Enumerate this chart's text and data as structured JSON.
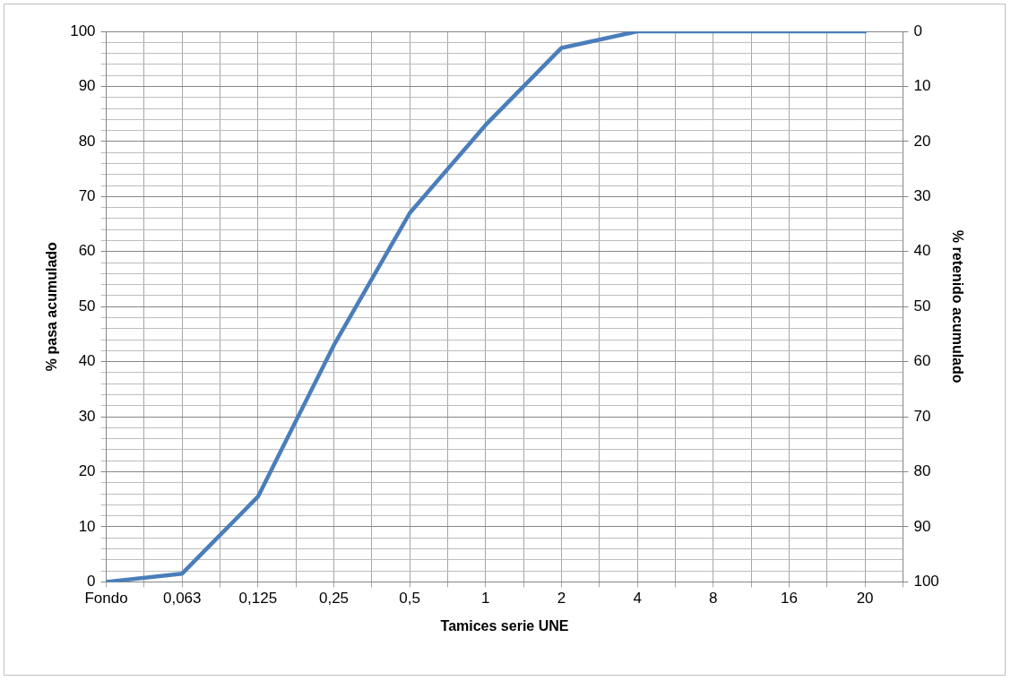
{
  "chart_data": {
    "type": "line",
    "xlabel": "Tamices serie UNE",
    "ylabel": "% pasa acumulado",
    "y2label": "% retenido acumulado",
    "categories": [
      "Fondo",
      "0,063",
      "0,125",
      "0,25",
      "0,5",
      "1",
      "2",
      "4",
      "8",
      "16",
      "20"
    ],
    "series": [
      {
        "color": "#4a7ebb",
        "values": [
          0,
          1.5,
          15.5,
          43,
          67,
          83,
          97,
          100,
          100,
          100,
          100
        ]
      }
    ],
    "ylim": [
      0,
      100
    ],
    "yticks": [
      0,
      {
        "value": 2,
        "label": null
      },
      {
        "value": 4,
        "label": null
      },
      {
        "value": 6,
        "label": null
      },
      {
        "value": 8,
        "label": null
      },
      10,
      {
        "value": 12,
        "label": null
      },
      {
        "value": 14,
        "label": null
      },
      {
        "value": 16,
        "label": null
      },
      {
        "value": 18,
        "label": null
      },
      20,
      {
        "value": 22,
        "label": null
      },
      {
        "value": 24,
        "label": null
      },
      {
        "value": 26,
        "label": null
      },
      {
        "value": 28,
        "label": null
      },
      30,
      {
        "value": 32,
        "label": null
      },
      {
        "value": 34,
        "label": null
      },
      {
        "value": 36,
        "label": null
      },
      {
        "value": 38,
        "label": null
      },
      40,
      {
        "value": 42,
        "label": null
      },
      {
        "value": 44,
        "label": null
      },
      {
        "value": 46,
        "label": null
      },
      {
        "value": 48,
        "label": null
      },
      50,
      {
        "value": 52,
        "label": null
      },
      {
        "value": 54,
        "label": null
      },
      {
        "value": 56,
        "label": null
      },
      {
        "value": 58,
        "label": null
      },
      60,
      {
        "value": 62,
        "label": null
      },
      {
        "value": 64,
        "label": null
      },
      {
        "value": 66,
        "label": null
      },
      {
        "value": 68,
        "label": null
      },
      70,
      {
        "value": 72,
        "label": null
      },
      {
        "value": 74,
        "label": null
      },
      {
        "value": 76,
        "label": null
      },
      {
        "value": 78,
        "label": null
      },
      80,
      {
        "value": 82,
        "label": null
      },
      {
        "value": 84,
        "label": null
      },
      {
        "value": 86,
        "label": null
      },
      {
        "value": 88,
        "label": null
      },
      90,
      {
        "value": 92,
        "label": null
      },
      {
        "value": 94,
        "label": null
      },
      {
        "value": 96,
        "label": null
      },
      {
        "value": 98,
        "label": null
      },
      100
    ],
    "y2lim": [
      100,
      0
    ],
    "y2ticks": [
      0,
      10,
      20,
      30,
      40,
      50,
      60,
      70,
      80,
      90,
      100
    ],
    "grid": true,
    "legend": false,
    "marker": "none",
    "line_style": "solid"
  }
}
